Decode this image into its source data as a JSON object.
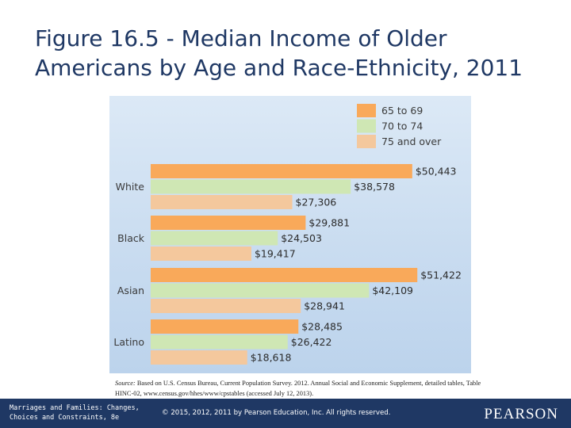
{
  "title": {
    "line1": "Figure 16.5 - Median Income of Older",
    "line2": "Americans by Age and Race-Ethnicity, 2011"
  },
  "chart_data": {
    "type": "bar",
    "orientation": "horizontal",
    "categories": [
      "White",
      "Black",
      "Asian",
      "Latino"
    ],
    "series": [
      {
        "name": "65 to 69",
        "color": "#f9a95a",
        "values": [
          50443,
          29881,
          51422,
          28485
        ],
        "labels": [
          "$50,443",
          "$29,881",
          "$51,422",
          "$28,485"
        ]
      },
      {
        "name": "70 to 74",
        "color": "#cfe7b4",
        "values": [
          38578,
          24503,
          42109,
          26422
        ],
        "labels": [
          "$38,578",
          "$24,503",
          "$42,109",
          "$26,422"
        ]
      },
      {
        "name": "75 and over",
        "color": "#f4c89d",
        "values": [
          27306,
          19417,
          28941,
          18618
        ],
        "labels": [
          "$27,306",
          "$19,417",
          "$28,941",
          "$18,618"
        ]
      }
    ],
    "legend_position": "top-right",
    "grid": false,
    "xlim": [
      0,
      52000
    ]
  },
  "source": {
    "prefix": "Source:",
    "text": "Based on U.S. Census Bureau, Current Population Survey. 2012. Annual Social and Economic Supplement, detailed tables, Table HINC-02, www.census.gov/hhes/www/cpstables (accessed July 12, 2013)."
  },
  "footer": {
    "book_line1": "Marriages and Families: Changes,",
    "book_line2": "Choices and Constraints, 8e",
    "copyright": "© 2015, 2012, 2011 by Pearson Education, Inc. All rights reserved.",
    "logo": "PEARSON"
  },
  "colors": {
    "title": "#1f3864",
    "footer_bg": "#1f3864",
    "panel_top": "#dce9f6",
    "panel_bottom": "#bcd3ec"
  }
}
